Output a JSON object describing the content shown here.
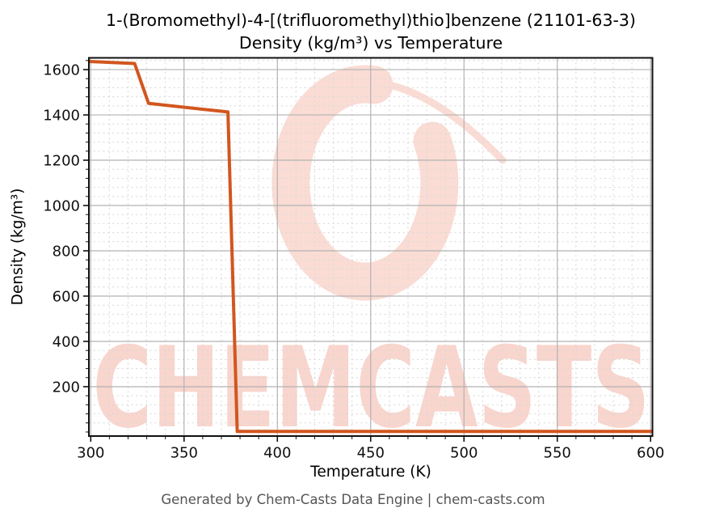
{
  "title": {
    "line1": "1-(Bromomethyl)-4-[(trifluoromethyl)thio]benzene (21101-63-3)",
    "line2": "Density (kg/m³) vs Temperature"
  },
  "footer": {
    "text": "Generated by Chem-Casts Data Engine | chem-casts.com"
  },
  "watermark": {
    "text": "CHEMCASTS",
    "logo": "chemcasts-c-swoosh-logo"
  },
  "colors": {
    "line": "#d2561e",
    "grid_major": "#b2b2b2",
    "grid_minor": "#d9d9d9",
    "axis": "#111111",
    "watermark_text": "#f8d5cd",
    "watermark_logo": "#fadcd4",
    "footer_text": "#545454"
  },
  "chart_data": {
    "type": "line",
    "title": "1-(Bromomethyl)-4-[(trifluoromethyl)thio]benzene (21101-63-3) — Density (kg/m³) vs Temperature",
    "xlabel": "Temperature (K)",
    "ylabel": "Density (kg/m³)",
    "xlim": [
      299,
      601
    ],
    "ylim": [
      -18,
      1652
    ],
    "x_major_ticks": [
      300,
      350,
      400,
      450,
      500,
      550,
      600
    ],
    "y_major_ticks": [
      200,
      400,
      600,
      800,
      1000,
      1200,
      1400,
      1600
    ],
    "x_minor_step": 10,
    "y_minor_step": 40,
    "grid": true,
    "legend_position": "none",
    "series": [
      {
        "name": "Density (kg/m³)",
        "color": "#d2561e",
        "points": [
          [
            299,
            1636
          ],
          [
            323.5,
            1627
          ],
          [
            331,
            1451
          ],
          [
            373.5,
            1413
          ],
          [
            378.5,
            2.4
          ],
          [
            601,
            2.2
          ]
        ]
      }
    ]
  }
}
